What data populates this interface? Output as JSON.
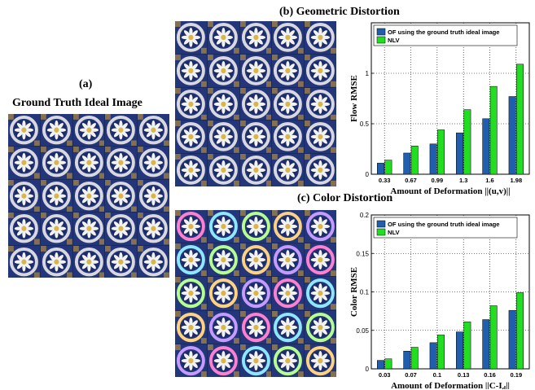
{
  "captions": {
    "a_label": "(a)",
    "a_title": "Ground Truth Ideal Image",
    "b_title": "(b)  Geometric Distortion",
    "c_title": "(c) Color Distortion"
  },
  "colors": {
    "series1": "#1f5fae",
    "series2": "#22dd22",
    "tile_blue": "#24367a",
    "ring": "#d8d8de",
    "flower": "#d9b64a"
  },
  "chart_data": [
    {
      "type": "bar",
      "ylabel": "Flow RMSE",
      "xlabel": "Amount of Deformation ||(u,v)||",
      "categories": [
        "0.33",
        "0.67",
        "0.99",
        "1.3",
        "1.6",
        "1.98"
      ],
      "ylim": [
        0,
        1.5
      ],
      "yticks": [
        "0",
        "0.5",
        "1"
      ],
      "grid": true,
      "legend_position": "top-left",
      "series": [
        {
          "name": "OF using the ground truth ideal image",
          "values": [
            0.11,
            0.21,
            0.3,
            0.41,
            0.55,
            0.77
          ]
        },
        {
          "name": "NLV",
          "values": [
            0.14,
            0.28,
            0.44,
            0.64,
            0.87,
            1.09
          ]
        }
      ]
    },
    {
      "type": "bar",
      "ylabel": "Color RMSE",
      "xlabel": "Amount of Deformation ||C-I",
      "xlabel_sub": "d",
      "xlabel_end": "||",
      "categories": [
        "0.03",
        "0.07",
        "0.1",
        "0.13",
        "0.16",
        "0.19"
      ],
      "ylim": [
        0,
        0.2
      ],
      "yticks": [
        "0",
        "0.05",
        "0.1",
        "0.15",
        "0.2"
      ],
      "grid": true,
      "legend_position": "top-left",
      "series": [
        {
          "name": "OF using the ground truth ideal image",
          "values": [
            0.011,
            0.023,
            0.034,
            0.048,
            0.064,
            0.076
          ]
        },
        {
          "name": "NLV",
          "values": [
            0.013,
            0.028,
            0.044,
            0.061,
            0.082,
            0.099
          ]
        }
      ]
    }
  ]
}
